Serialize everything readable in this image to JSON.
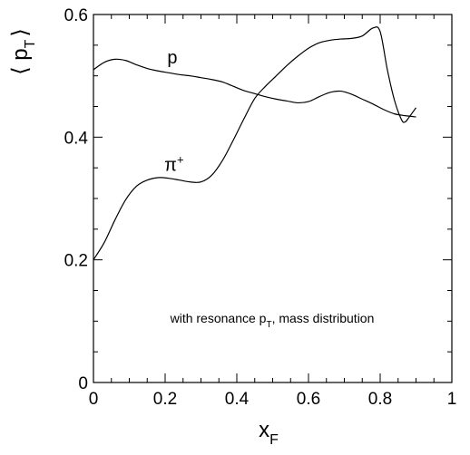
{
  "chart_data": {
    "type": "line",
    "title": "",
    "ylabel": "⟨ p",
    "ylabel_sub": "T",
    "ylabel_close": "⟩",
    "xlabel": "x",
    "xlabel_sub": "F",
    "xlim": [
      0,
      1
    ],
    "ylim": [
      0,
      0.6
    ],
    "grid": false,
    "x_ticks": [
      0,
      0.2,
      0.4,
      0.6,
      0.8,
      1
    ],
    "x_tick_labels": [
      "0",
      "0.2",
      "0.4",
      "0.6",
      "0.8",
      "1"
    ],
    "y_ticks": [
      0,
      0.2,
      0.4,
      0.6
    ],
    "y_tick_labels": [
      "0",
      "0.2",
      "0.4",
      "0.6"
    ],
    "annotation": {
      "text": "with resonance p",
      "sub": "T",
      "suffix": ", mass distribution",
      "x": 0.5,
      "y": 0.1
    },
    "series": [
      {
        "name": "p",
        "label_x": 0.22,
        "label_y": 0.52,
        "x": [
          0.0,
          0.03,
          0.06,
          0.09,
          0.12,
          0.15,
          0.18,
          0.21,
          0.24,
          0.27,
          0.3,
          0.33,
          0.36,
          0.39,
          0.42,
          0.45,
          0.48,
          0.51,
          0.54,
          0.57,
          0.6,
          0.63,
          0.66,
          0.69,
          0.72,
          0.75,
          0.78,
          0.81,
          0.84,
          0.87,
          0.9
        ],
        "y": [
          0.51,
          0.522,
          0.527,
          0.525,
          0.518,
          0.512,
          0.508,
          0.505,
          0.502,
          0.5,
          0.497,
          0.494,
          0.49,
          0.483,
          0.476,
          0.471,
          0.466,
          0.462,
          0.459,
          0.456,
          0.458,
          0.466,
          0.473,
          0.475,
          0.47,
          0.462,
          0.454,
          0.445,
          0.438,
          0.435,
          0.433
        ]
      },
      {
        "name": "π+",
        "label_x": 0.225,
        "label_y": 0.345,
        "x": [
          0.0,
          0.03,
          0.06,
          0.09,
          0.12,
          0.15,
          0.18,
          0.21,
          0.24,
          0.27,
          0.3,
          0.33,
          0.36,
          0.39,
          0.42,
          0.45,
          0.48,
          0.51,
          0.54,
          0.57,
          0.6,
          0.63,
          0.66,
          0.69,
          0.72,
          0.75,
          0.78,
          0.8,
          0.82,
          0.84,
          0.86,
          0.87,
          0.88,
          0.9
        ],
        "y": [
          0.2,
          0.228,
          0.265,
          0.298,
          0.32,
          0.33,
          0.334,
          0.333,
          0.33,
          0.327,
          0.327,
          0.338,
          0.362,
          0.395,
          0.43,
          0.463,
          0.483,
          0.5,
          0.517,
          0.532,
          0.545,
          0.554,
          0.558,
          0.56,
          0.561,
          0.565,
          0.578,
          0.572,
          0.51,
          0.46,
          0.428,
          0.425,
          0.432,
          0.448
        ]
      }
    ]
  }
}
